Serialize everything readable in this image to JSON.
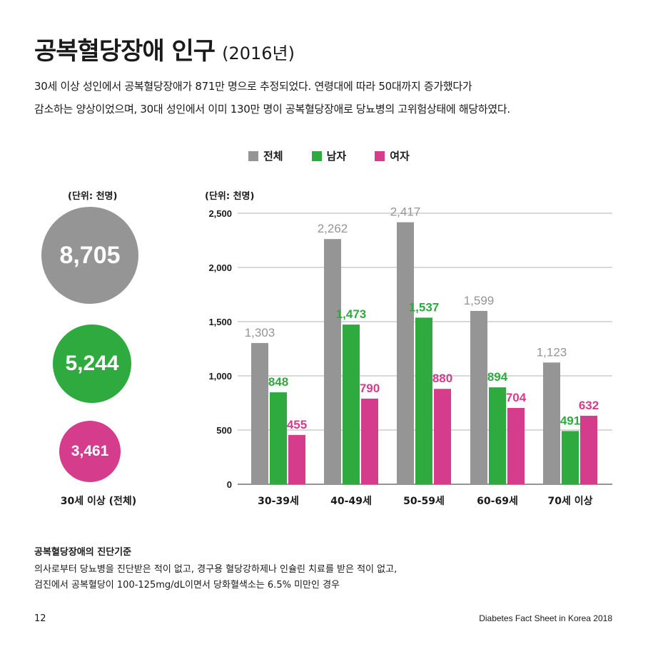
{
  "header": {
    "title": "공복혈당장애 인구",
    "year": "(2016년)",
    "desc_line1": "30세 이상 성인에서 공복혈당장애가 871만 명으로 추정되었다. 연령대에 따라 50대까지 증가했다가",
    "desc_line2": "감소하는 양상이었으며, 30대 성인에서 이미 130만 명이 공복혈당장애로 당뇨병의 고위험상태에 해당하였다."
  },
  "legend": [
    {
      "label": "전체",
      "color": "#959595"
    },
    {
      "label": "남자",
      "color": "#2eaa3f"
    },
    {
      "label": "여자",
      "color": "#d63c8c"
    }
  ],
  "totals": {
    "unit": "(단위: 천명)",
    "items": [
      {
        "name": "total",
        "value": "8,705",
        "color": "#959595"
      },
      {
        "name": "male",
        "value": "5,244",
        "color": "#2eaa3f"
      },
      {
        "name": "female",
        "value": "3,461",
        "color": "#d63c8c"
      }
    ],
    "label": "30세 이상 (전체)"
  },
  "chart_data": {
    "type": "bar",
    "unit_label": "(단위: 천명)",
    "categories": [
      "30-39세",
      "40-49세",
      "50-59세",
      "60-69세",
      "70세 이상"
    ],
    "series": [
      {
        "name": "전체",
        "color": "#959595",
        "values": [
          1303,
          2262,
          2417,
          1599,
          1123
        ]
      },
      {
        "name": "남자",
        "color": "#2eaa3f",
        "values": [
          848,
          1473,
          1537,
          894,
          491
        ]
      },
      {
        "name": "여자",
        "color": "#d63c8c",
        "values": [
          455,
          790,
          880,
          704,
          632
        ]
      }
    ],
    "yticks": [
      0,
      500,
      1000,
      1500,
      2000,
      2500
    ],
    "ylim": [
      0,
      2500
    ],
    "grid": true
  },
  "criteria": {
    "title": "공복혈당장애의 진단기준",
    "line1": "의사로부터 당뇨병을 진단받은 적이 없고, 경구용 혈당강하제나 인슐린 치료를 받은 적이 없고,",
    "line2": "검진에서 공복혈당이 100-125mg/dL이면서 당화혈색소는 6.5% 미만인 경우"
  },
  "footer": {
    "page": "12",
    "source": "Diabetes Fact Sheet in Korea 2018"
  }
}
